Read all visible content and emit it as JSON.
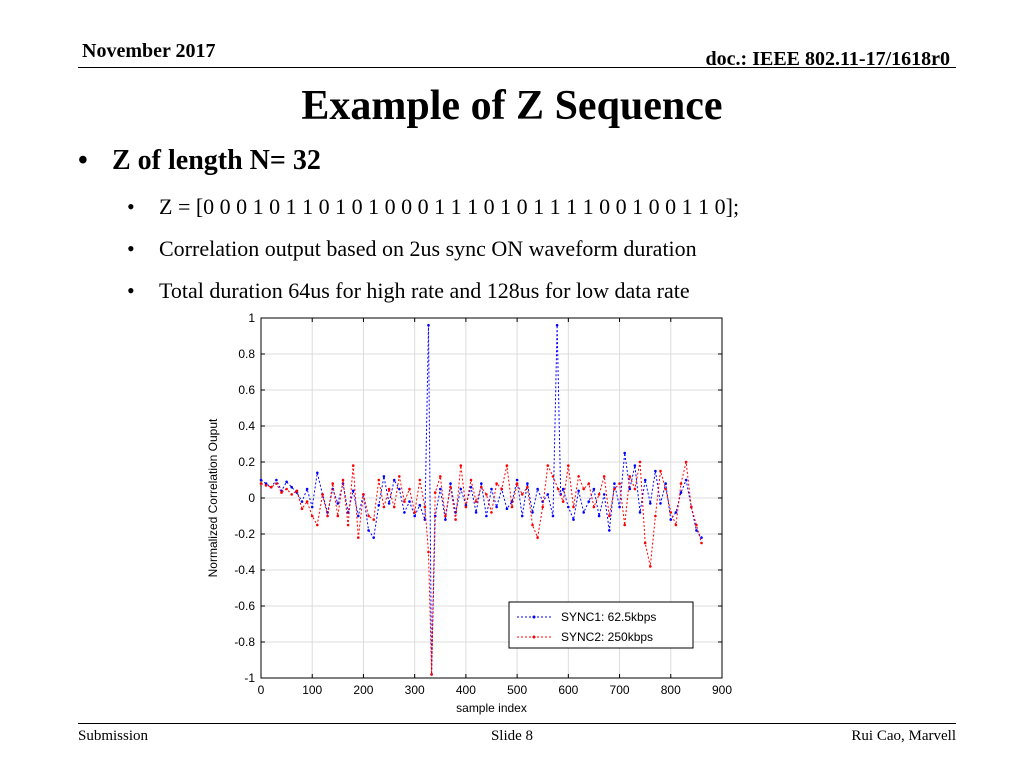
{
  "header": {
    "date": "November 2017",
    "doc": "doc.: IEEE 802.11-17/1618r0"
  },
  "title": "Example of Z Sequence",
  "bullets": {
    "main": "Z of length N= 32",
    "sub": [
      "Z = [0 0 0 1 0 1 1 0 1 0 1 0 0 0 1 1 1 0 1 0 1 1 1 1 0 0 1 0 0 1 1 0];",
      "Correlation output based on 2us sync ON waveform duration",
      "Total duration 64us for high rate and 128us for low data rate"
    ]
  },
  "footer": {
    "left": "Submission",
    "center": "Slide 8",
    "right": "Rui Cao, Marvell"
  },
  "chart_data": {
    "type": "line",
    "xlabel": "sample index",
    "ylabel": "Normalized Correlation Ouput",
    "xlim": [
      0,
      900
    ],
    "ylim": [
      -1,
      1
    ],
    "xticks": [
      0,
      100,
      200,
      300,
      400,
      500,
      600,
      700,
      800,
      900
    ],
    "yticks": [
      1,
      0.8,
      0.6,
      0.4,
      0.2,
      0,
      -0.2,
      -0.4,
      -0.6,
      -0.8,
      -1
    ],
    "grid": true,
    "legend_position": "bottom-right",
    "series": [
      {
        "name": "SYNC1: 62.5kbps",
        "color": "#0000ff",
        "points": [
          [
            0,
            0.1
          ],
          [
            10,
            0.08
          ],
          [
            20,
            0.06
          ],
          [
            30,
            0.1
          ],
          [
            40,
            0.04
          ],
          [
            50,
            0.09
          ],
          [
            60,
            0.06
          ],
          [
            70,
            0.03
          ],
          [
            80,
            -0.02
          ],
          [
            90,
            0.05
          ],
          [
            100,
            -0.05
          ],
          [
            110,
            0.14
          ],
          [
            120,
            0.02
          ],
          [
            130,
            -0.08
          ],
          [
            140,
            0.05
          ],
          [
            150,
            -0.03
          ],
          [
            160,
            0.08
          ],
          [
            170,
            -0.08
          ],
          [
            180,
            0.04
          ],
          [
            190,
            -0.1
          ],
          [
            200,
            0.02
          ],
          [
            210,
            -0.18
          ],
          [
            220,
            -0.22
          ],
          [
            230,
            -0.04
          ],
          [
            240,
            0.12
          ],
          [
            250,
            -0.03
          ],
          [
            260,
            0.1
          ],
          [
            270,
            0.05
          ],
          [
            280,
            -0.08
          ],
          [
            290,
            -0.02
          ],
          [
            300,
            -0.1
          ],
          [
            310,
            -0.04
          ],
          [
            320,
            -0.12
          ],
          [
            327,
            0.96
          ],
          [
            333,
            -0.98
          ],
          [
            340,
            -0.1
          ],
          [
            350,
            0.05
          ],
          [
            360,
            -0.12
          ],
          [
            370,
            0.08
          ],
          [
            380,
            -0.08
          ],
          [
            390,
            0.05
          ],
          [
            400,
            -0.04
          ],
          [
            410,
            0.06
          ],
          [
            420,
            -0.08
          ],
          [
            430,
            0.08
          ],
          [
            440,
            -0.1
          ],
          [
            450,
            0.05
          ],
          [
            460,
            -0.05
          ],
          [
            470,
            0.05
          ],
          [
            480,
            -0.06
          ],
          [
            490,
            -0.02
          ],
          [
            500,
            0.1
          ],
          [
            510,
            -0.1
          ],
          [
            520,
            0.08
          ],
          [
            530,
            -0.08
          ],
          [
            540,
            0.05
          ],
          [
            550,
            -0.02
          ],
          [
            560,
            0.02
          ],
          [
            570,
            -0.1
          ],
          [
            578,
            0.96
          ],
          [
            585,
            0.02
          ],
          [
            590,
            0.05
          ],
          [
            600,
            -0.05
          ],
          [
            610,
            -0.12
          ],
          [
            620,
            0.04
          ],
          [
            630,
            -0.08
          ],
          [
            640,
            -0.02
          ],
          [
            650,
            0.05
          ],
          [
            660,
            -0.1
          ],
          [
            670,
            0.02
          ],
          [
            680,
            -0.18
          ],
          [
            690,
            0.08
          ],
          [
            700,
            -0.05
          ],
          [
            710,
            0.25
          ],
          [
            720,
            0.05
          ],
          [
            730,
            0.18
          ],
          [
            740,
            -0.08
          ],
          [
            750,
            0.1
          ],
          [
            760,
            -0.03
          ],
          [
            770,
            0.15
          ],
          [
            780,
            -0.03
          ],
          [
            790,
            0.08
          ],
          [
            800,
            -0.12
          ],
          [
            810,
            -0.08
          ],
          [
            820,
            0.03
          ],
          [
            830,
            0.1
          ],
          [
            840,
            -0.05
          ],
          [
            850,
            -0.18
          ],
          [
            860,
            -0.22
          ]
        ]
      },
      {
        "name": "SYNC2: 250kbps",
        "color": "#ff0000",
        "points": [
          [
            0,
            0.08
          ],
          [
            10,
            0.07
          ],
          [
            20,
            0.06
          ],
          [
            30,
            0.08
          ],
          [
            40,
            0.03
          ],
          [
            50,
            0.05
          ],
          [
            60,
            0.02
          ],
          [
            70,
            0.04
          ],
          [
            80,
            -0.06
          ],
          [
            90,
            -0.02
          ],
          [
            100,
            -0.1
          ],
          [
            110,
            -0.15
          ],
          [
            120,
            0.02
          ],
          [
            130,
            -0.1
          ],
          [
            140,
            0.08
          ],
          [
            150,
            -0.1
          ],
          [
            160,
            0.1
          ],
          [
            170,
            -0.15
          ],
          [
            180,
            0.18
          ],
          [
            190,
            -0.22
          ],
          [
            200,
            0.02
          ],
          [
            210,
            -0.1
          ],
          [
            220,
            -0.12
          ],
          [
            230,
            0.1
          ],
          [
            240,
            -0.05
          ],
          [
            250,
            0.05
          ],
          [
            260,
            -0.05
          ],
          [
            270,
            0.12
          ],
          [
            280,
            -0.02
          ],
          [
            290,
            0.05
          ],
          [
            300,
            -0.08
          ],
          [
            310,
            0.1
          ],
          [
            320,
            -0.05
          ],
          [
            327,
            -0.3
          ],
          [
            333,
            -0.98
          ],
          [
            340,
            0.03
          ],
          [
            350,
            0.12
          ],
          [
            360,
            -0.1
          ],
          [
            370,
            0.06
          ],
          [
            380,
            -0.12
          ],
          [
            390,
            0.18
          ],
          [
            400,
            -0.05
          ],
          [
            410,
            0.1
          ],
          [
            420,
            -0.02
          ],
          [
            430,
            0.06
          ],
          [
            440,
            0.02
          ],
          [
            450,
            -0.08
          ],
          [
            460,
            0.08
          ],
          [
            470,
            0.05
          ],
          [
            480,
            0.18
          ],
          [
            490,
            -0.05
          ],
          [
            500,
            0.08
          ],
          [
            510,
            0.02
          ],
          [
            520,
            0.06
          ],
          [
            530,
            -0.15
          ],
          [
            540,
            -0.22
          ],
          [
            550,
            -0.05
          ],
          [
            560,
            0.18
          ],
          [
            570,
            0.12
          ],
          [
            580,
            0.05
          ],
          [
            590,
            -0.02
          ],
          [
            600,
            0.18
          ],
          [
            610,
            -0.05
          ],
          [
            620,
            0.12
          ],
          [
            630,
            0.05
          ],
          [
            640,
            0.08
          ],
          [
            650,
            -0.05
          ],
          [
            660,
            0.02
          ],
          [
            670,
            0.12
          ],
          [
            680,
            -0.1
          ],
          [
            690,
            0.05
          ],
          [
            700,
            0.08
          ],
          [
            710,
            -0.15
          ],
          [
            720,
            0.12
          ],
          [
            730,
            0.05
          ],
          [
            740,
            0.2
          ],
          [
            750,
            -0.25
          ],
          [
            760,
            -0.38
          ],
          [
            770,
            -0.1
          ],
          [
            780,
            0.15
          ],
          [
            790,
            0.05
          ],
          [
            800,
            -0.08
          ],
          [
            810,
            -0.15
          ],
          [
            820,
            0.08
          ],
          [
            830,
            0.2
          ],
          [
            840,
            -0.05
          ],
          [
            850,
            -0.15
          ],
          [
            860,
            -0.25
          ]
        ]
      }
    ]
  }
}
